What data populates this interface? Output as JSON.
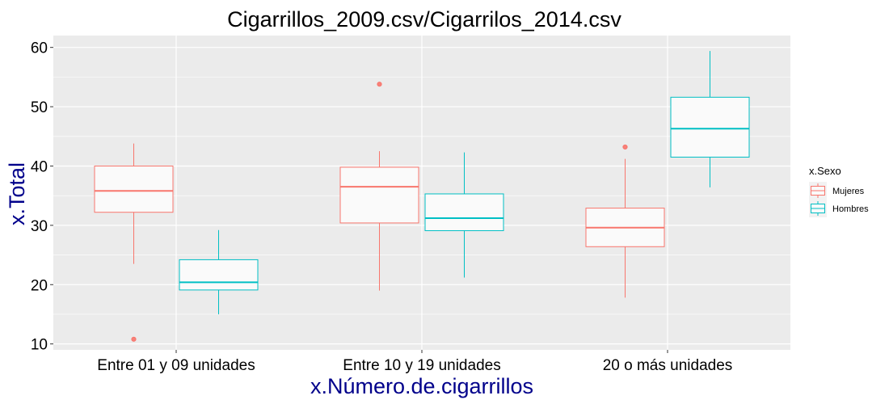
{
  "chart_data": {
    "type": "boxplot",
    "title": "Cigarrillos_2009.csv/Cigarrilos_2014.csv",
    "xlabel": "x.Número.de.cigarrillos",
    "ylabel": "x.Total",
    "ylim": [
      9,
      62
    ],
    "yticks": [
      10,
      20,
      30,
      40,
      50,
      60
    ],
    "categories": [
      "Entre 01 y 09 unidades",
      "Entre 10 y 19 unidades",
      "20 o más unidades"
    ],
    "legend": {
      "title": "x.Sexo",
      "position": "right"
    },
    "grid": true,
    "panel_background": "#EBEBEB",
    "series": [
      {
        "name": "Mujeres",
        "color": "#F8766D",
        "boxes": [
          {
            "category": "Entre 01 y 09 unidades",
            "whisker_low": 23.5,
            "q1": 32.2,
            "median": 35.8,
            "q3": 40.0,
            "whisker_high": 43.8,
            "outliers": [
              10.8
            ]
          },
          {
            "category": "Entre 10 y 19 unidades",
            "whisker_low": 19.0,
            "q1": 30.4,
            "median": 36.5,
            "q3": 39.8,
            "whisker_high": 42.5,
            "outliers": [
              53.8
            ]
          },
          {
            "category": "20 o más unidades",
            "whisker_low": 17.8,
            "q1": 26.4,
            "median": 29.6,
            "q3": 32.9,
            "whisker_high": 41.2,
            "outliers": [
              43.2
            ]
          }
        ]
      },
      {
        "name": "Hombres",
        "color": "#00BFC4",
        "boxes": [
          {
            "category": "Entre 01 y 09 unidades",
            "whisker_low": 15.0,
            "q1": 19.1,
            "median": 20.4,
            "q3": 24.2,
            "whisker_high": 29.2,
            "outliers": []
          },
          {
            "category": "Entre 10 y 19 unidades",
            "whisker_low": 21.2,
            "q1": 29.1,
            "median": 31.2,
            "q3": 35.3,
            "whisker_high": 42.3,
            "outliers": []
          },
          {
            "category": "20 o más unidades",
            "whisker_low": 36.4,
            "q1": 41.5,
            "median": 46.3,
            "q3": 51.6,
            "whisker_high": 59.4,
            "outliers": []
          }
        ]
      }
    ]
  }
}
